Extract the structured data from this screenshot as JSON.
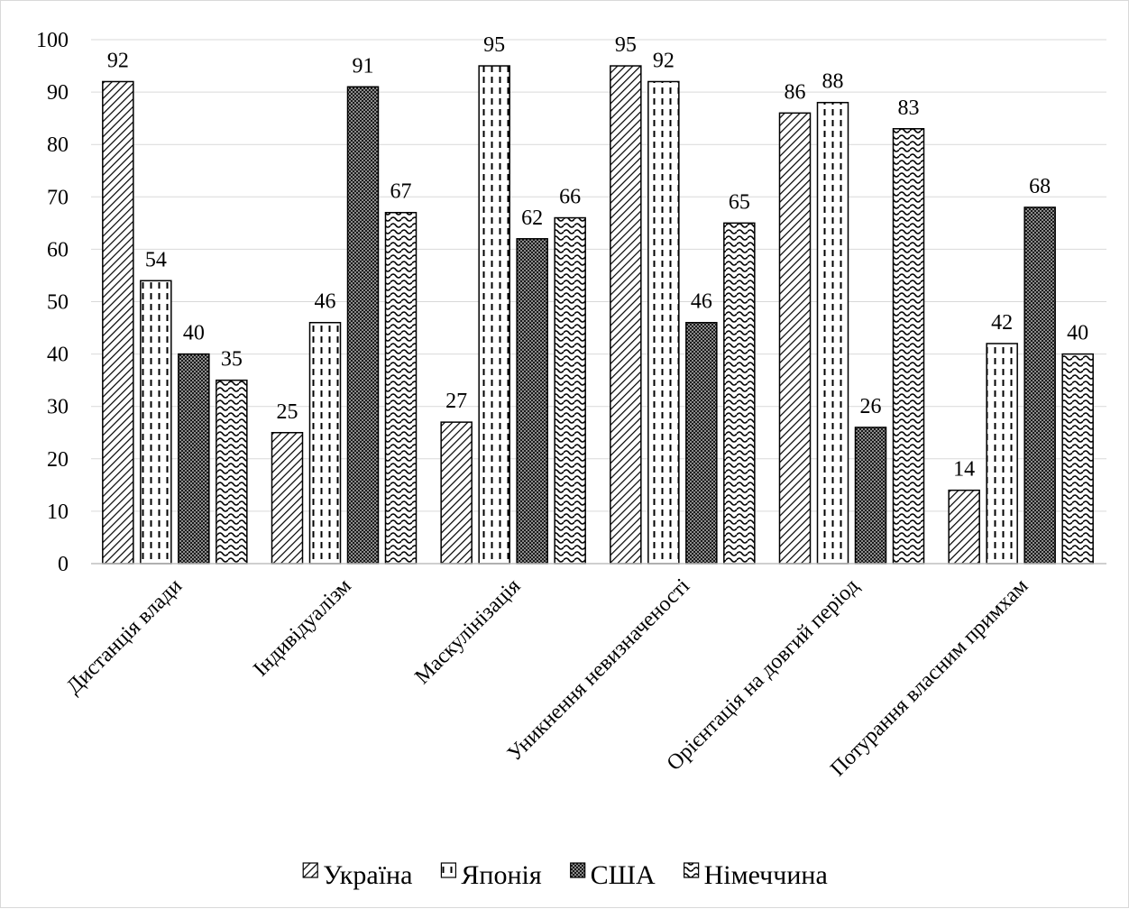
{
  "chart_data": {
    "type": "bar",
    "title": "",
    "xlabel": "",
    "ylabel": "",
    "ylim": [
      0,
      100
    ],
    "yticks": [
      0,
      10,
      20,
      30,
      40,
      50,
      60,
      70,
      80,
      90,
      100
    ],
    "grid": true,
    "legend_position": "bottom",
    "categories": [
      "Дистанція влади",
      "Індивідуалізм",
      "Маскулінізація",
      "Уникнення невизначеності",
      "Орієнтація на довгий період",
      "Потурання власним примхам"
    ],
    "series": [
      {
        "name": "Україна",
        "pattern": "diagonal-hatch",
        "values": [
          92,
          25,
          27,
          95,
          86,
          14
        ]
      },
      {
        "name": "Японія",
        "pattern": "vertical-dashes",
        "values": [
          54,
          46,
          95,
          92,
          88,
          42
        ]
      },
      {
        "name": "США",
        "pattern": "dark-checker",
        "values": [
          40,
          91,
          62,
          46,
          26,
          68
        ]
      },
      {
        "name": "Німеччина",
        "pattern": "wave",
        "values": [
          35,
          67,
          66,
          65,
          83,
          40
        ]
      }
    ]
  }
}
